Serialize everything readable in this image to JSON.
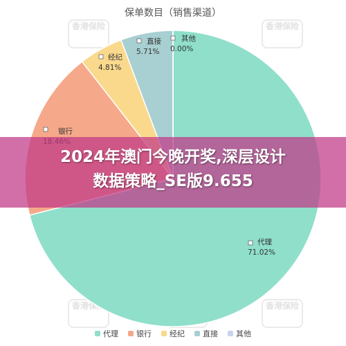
{
  "chart_data": {
    "type": "pie",
    "title": "保单数目（销售渠道）",
    "categories": [
      "代理",
      "银行",
      "经纪",
      "直接",
      "其他"
    ],
    "values": [
      71.02,
      18.46,
      4.81,
      5.71,
      0.0
    ],
    "value_labels": [
      "71.02%",
      "18.46%",
      "4.81%",
      "5.71%",
      "0.00%"
    ],
    "colors": [
      "#8FDFCB",
      "#F5A98A",
      "#FAD98D",
      "#A8CFD1",
      "#C9D2F0"
    ],
    "legend_position": "bottom"
  },
  "banner": {
    "line1": "2024年澳门今晚开奖,深层设计",
    "line2": "数据策略_SE版9.655"
  },
  "watermark": {
    "logo_text": "香港保险",
    "sub_text": "香港保险圈"
  }
}
